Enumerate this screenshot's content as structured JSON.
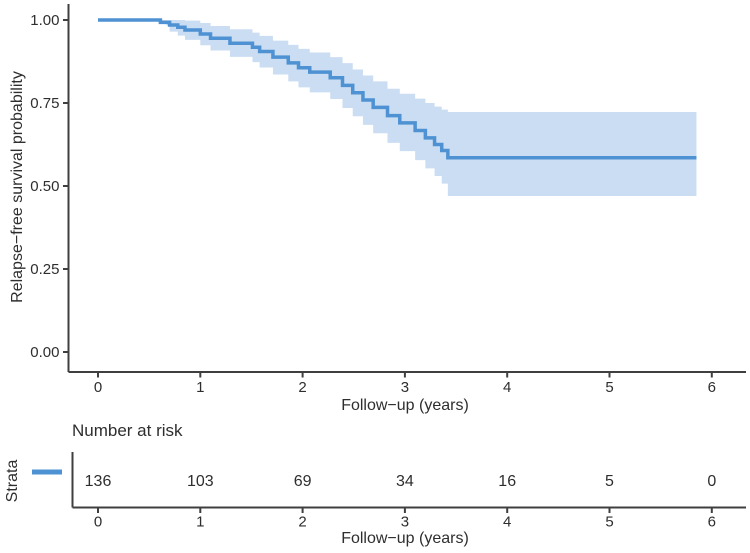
{
  "figure": {
    "background": "#ffffff"
  },
  "chart_data": {
    "type": "line",
    "subtype": "kaplan-meier-step-with-confidence-band",
    "title": "",
    "xlabel": "Follow−up (years)",
    "ylabel": "Relapse−free survival probability",
    "xlim": [
      -0.3,
      6.33
    ],
    "ylim": [
      0.0,
      1.06
    ],
    "x_ticks": [
      0,
      1,
      2,
      3,
      4,
      5,
      6
    ],
    "y_ticks": [
      {
        "value": 1.0,
        "label": "1.00"
      },
      {
        "value": 0.75,
        "label": "0.75"
      },
      {
        "value": 0.5,
        "label": "0.50"
      },
      {
        "value": 0.25,
        "label": "0.25"
      },
      {
        "value": 0.0,
        "label": "0.00"
      }
    ],
    "grid": false,
    "legend_position": "left-of-risk-table",
    "curve_color": "#4e92d3",
    "band_color": "#cbddf2",
    "axis_color": "#3f3f3f",
    "text_color": "#2e2e2e",
    "end_time": 5.85,
    "plateau_survival": 0.585,
    "steps": [
      {
        "t": 0.0,
        "surv": 1.0,
        "upper": null,
        "lower": null
      },
      {
        "t": 0.61,
        "surv": 0.993,
        "upper": 1.0,
        "lower": 0.978
      },
      {
        "t": 0.7,
        "surv": 0.985,
        "upper": 1.0,
        "lower": 0.965
      },
      {
        "t": 0.78,
        "surv": 0.978,
        "upper": 1.0,
        "lower": 0.953
      },
      {
        "t": 0.85,
        "surv": 0.97,
        "upper": 0.998,
        "lower": 0.94
      },
      {
        "t": 1.0,
        "surv": 0.958,
        "upper": 0.991,
        "lower": 0.924
      },
      {
        "t": 1.1,
        "surv": 0.945,
        "upper": 0.982,
        "lower": 0.908
      },
      {
        "t": 1.29,
        "surv": 0.93,
        "upper": 0.972,
        "lower": 0.889
      },
      {
        "t": 1.51,
        "surv": 0.918,
        "upper": 0.962,
        "lower": 0.873
      },
      {
        "t": 1.58,
        "surv": 0.905,
        "upper": 0.952,
        "lower": 0.857
      },
      {
        "t": 1.71,
        "surv": 0.888,
        "upper": 0.938,
        "lower": 0.836
      },
      {
        "t": 1.86,
        "surv": 0.871,
        "upper": 0.925,
        "lower": 0.815
      },
      {
        "t": 1.96,
        "surv": 0.856,
        "upper": 0.913,
        "lower": 0.797
      },
      {
        "t": 2.07,
        "surv": 0.843,
        "upper": 0.902,
        "lower": 0.782
      },
      {
        "t": 2.27,
        "surv": 0.826,
        "upper": 0.888,
        "lower": 0.762
      },
      {
        "t": 2.39,
        "surv": 0.803,
        "upper": 0.87,
        "lower": 0.735
      },
      {
        "t": 2.49,
        "surv": 0.781,
        "upper": 0.851,
        "lower": 0.71
      },
      {
        "t": 2.59,
        "surv": 0.759,
        "upper": 0.833,
        "lower": 0.684
      },
      {
        "t": 2.69,
        "surv": 0.737,
        "upper": 0.815,
        "lower": 0.659
      },
      {
        "t": 2.83,
        "surv": 0.712,
        "upper": 0.793,
        "lower": 0.63
      },
      {
        "t": 2.95,
        "surv": 0.69,
        "upper": 0.778,
        "lower": 0.605
      },
      {
        "t": 3.1,
        "surv": 0.667,
        "upper": 0.763,
        "lower": 0.578
      },
      {
        "t": 3.2,
        "surv": 0.645,
        "upper": 0.75,
        "lower": 0.553
      },
      {
        "t": 3.29,
        "surv": 0.625,
        "upper": 0.739,
        "lower": 0.53
      },
      {
        "t": 3.36,
        "surv": 0.607,
        "upper": 0.73,
        "lower": 0.507
      },
      {
        "t": 3.42,
        "surv": 0.585,
        "upper": 0.723,
        "lower": 0.47
      }
    ]
  },
  "risk_table": {
    "title": "Number at risk",
    "strata_label": "Strata",
    "xlabel": "Follow−up (years)",
    "times": [
      0,
      1,
      2,
      3,
      4,
      5,
      6
    ],
    "counts": [
      136,
      103,
      69,
      34,
      16,
      5,
      0
    ],
    "legend_key_color": "#4e92d3"
  }
}
